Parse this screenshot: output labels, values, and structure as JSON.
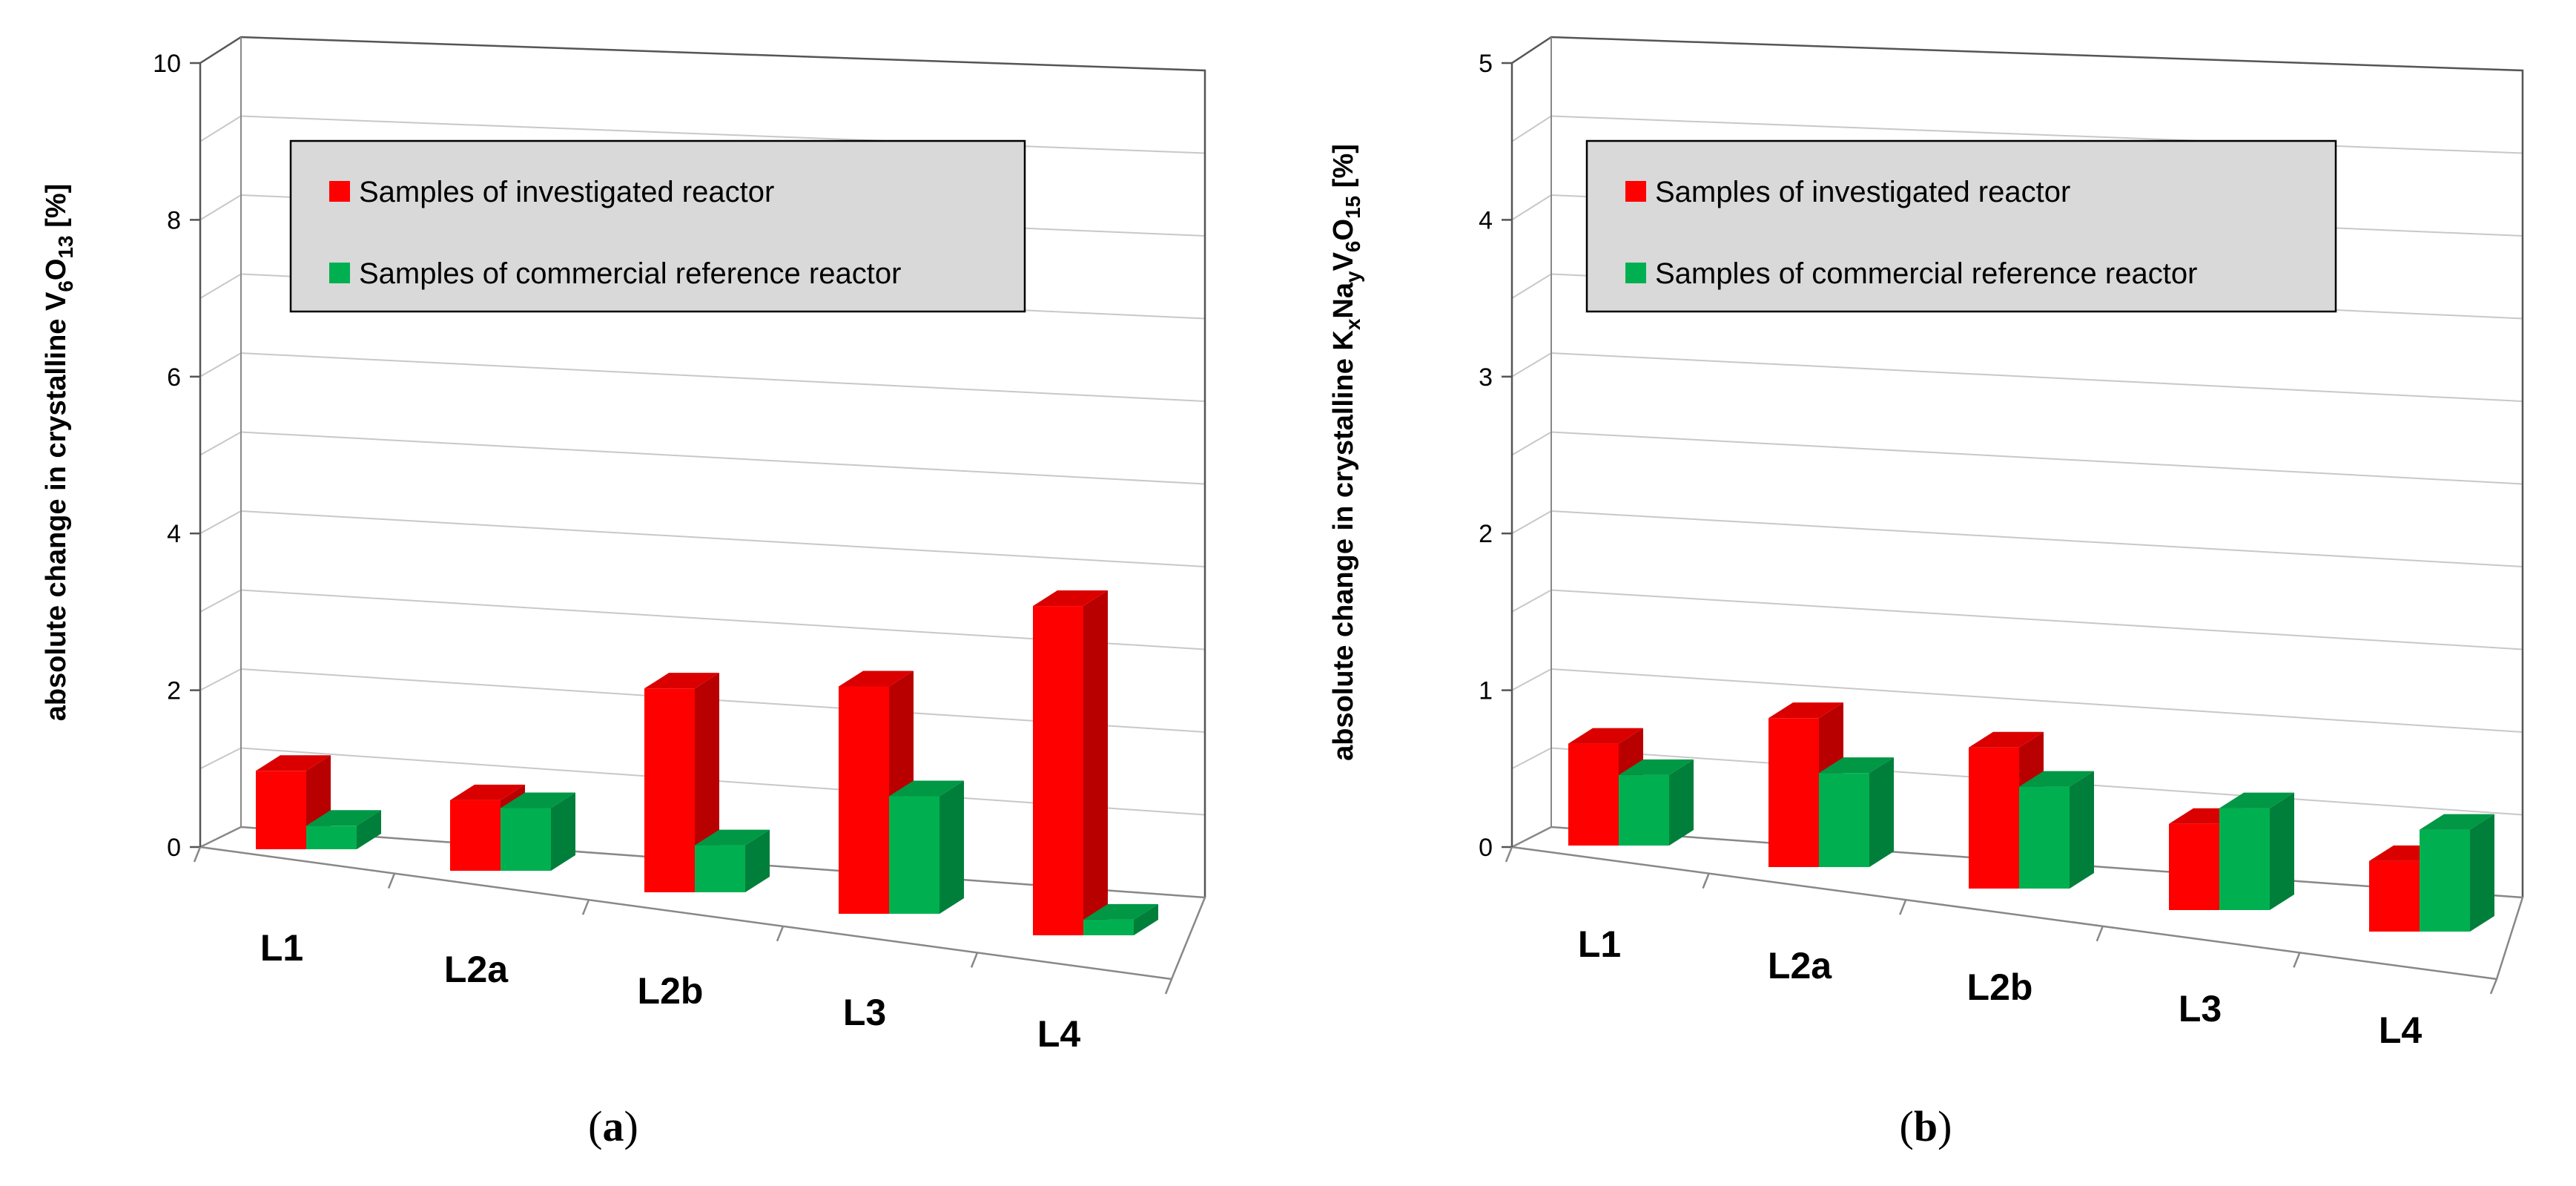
{
  "chart_data": [
    {
      "type": "bar",
      "panel_label": "a",
      "title": "",
      "ylabel": {
        "prefix": "absolute change in crystalline V",
        "sub1": "6",
        "mid": "O",
        "sub2": "13",
        "suffix": " [%]"
      },
      "xlabel": "",
      "ylim": [
        0,
        10
      ],
      "yticks": [
        "0",
        "2",
        "4",
        "6",
        "8",
        "10"
      ],
      "categories": [
        "L1",
        "L2a",
        "L2b",
        "L3",
        "L4"
      ],
      "series": [
        {
          "name": "Samples of investigated reactor",
          "color": "#ff0000",
          "values": [
            1.0,
            0.9,
            2.6,
            2.9,
            4.2
          ]
        },
        {
          "name": "Samples of commercial reference reactor",
          "color": "#00b050",
          "values": [
            0.3,
            0.8,
            0.6,
            1.5,
            0.2
          ]
        }
      ],
      "legend": "top-left"
    },
    {
      "type": "bar",
      "panel_label": "b",
      "title": "",
      "ylabel": {
        "prefix": "absolute change in crystalline K",
        "sub1": "x",
        "mid": "Na",
        "sub2": "y",
        "mid2": "V",
        "sub3": "6",
        "mid3": "O",
        "sub4": "15",
        "suffix": " [%]"
      },
      "xlabel": "",
      "ylim": [
        0,
        5
      ],
      "yticks": [
        "0",
        "1",
        "2",
        "3",
        "4",
        "5"
      ],
      "categories": [
        "L1",
        "L2a",
        "L2b",
        "L3",
        "L4"
      ],
      "series": [
        {
          "name": "Samples of investigated reactor",
          "color": "#ff0000",
          "values": [
            0.65,
            0.95,
            0.9,
            0.55,
            0.45
          ]
        },
        {
          "name": "Samples of commercial reference reactor",
          "color": "#00b050",
          "values": [
            0.45,
            0.6,
            0.65,
            0.65,
            0.65
          ]
        }
      ],
      "legend": "top-left"
    }
  ]
}
